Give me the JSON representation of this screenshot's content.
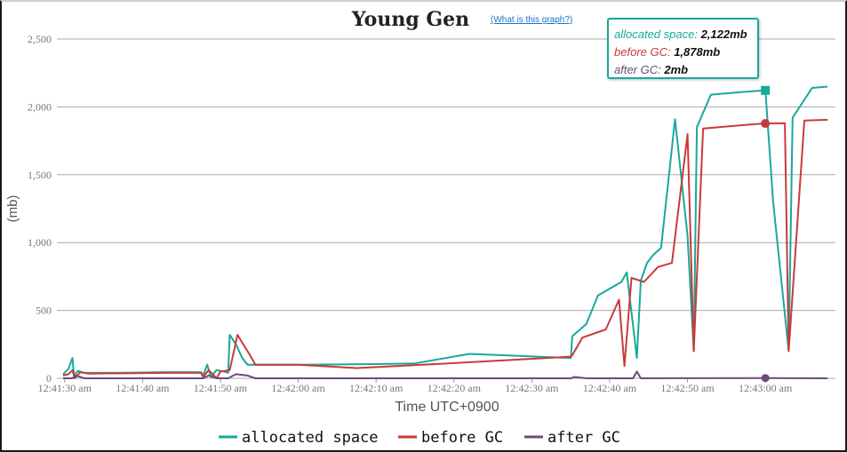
{
  "chart_data": {
    "type": "line",
    "title": "Young Gen",
    "help_link": "(What is this graph?)",
    "xlabel": "Time UTC+0900",
    "ylabel": "(mb)",
    "ylim": [
      0,
      2500
    ],
    "yticks": [
      "0",
      "500",
      "1,000",
      "1,500",
      "2,000",
      "2,500"
    ],
    "ytick_values": [
      0,
      500,
      1000,
      1500,
      2000,
      2500
    ],
    "xlim": [
      "12:41:29",
      "12:43:09"
    ],
    "xticks": [
      "12:41:30 am",
      "12:41:40 am",
      "12:41:50 am",
      "12:42:00 am",
      "12:42:10 am",
      "12:42:20 am",
      "12:42:30 am",
      "12:42:40 am",
      "12:42:50 am",
      "12:43:00 am"
    ],
    "xtick_values": [
      "12:41:30",
      "12:41:40",
      "12:41:50",
      "12:42:00",
      "12:42:10",
      "12:42:20",
      "12:42:30",
      "12:42:40",
      "12:42:50",
      "12:43:00"
    ],
    "grid": true,
    "legend_position": "bottom",
    "series": [
      {
        "name": "allocated space",
        "color": "#17a99a",
        "points": [
          [
            "12:41:29.8",
            30
          ],
          [
            "12:41:30.5",
            70
          ],
          [
            "12:41:31.0",
            150
          ],
          [
            "12:41:31.2",
            20
          ],
          [
            "12:41:31.7",
            55
          ],
          [
            "12:41:32.5",
            40
          ],
          [
            "12:41:37.0",
            40
          ],
          [
            "12:41:43.0",
            45
          ],
          [
            "12:41:47.5",
            45
          ],
          [
            "12:41:47.8",
            20
          ],
          [
            "12:41:48.3",
            100
          ],
          [
            "12:41:48.8",
            10
          ],
          [
            "12:41:49.5",
            60
          ],
          [
            "12:41:50.5",
            50
          ],
          [
            "12:41:51.0",
            40
          ],
          [
            "12:41:51.2",
            320
          ],
          [
            "12:41:52.0",
            250
          ],
          [
            "12:41:52.8",
            150
          ],
          [
            "12:41:53.5",
            100
          ],
          [
            "12:41:56.0",
            100
          ],
          [
            "12:42:00.0",
            100
          ],
          [
            "12:42:10.0",
            105
          ],
          [
            "12:42:15.0",
            110
          ],
          [
            "12:42:22.0",
            180
          ],
          [
            "12:42:35.0",
            150
          ],
          [
            "12:42:35.2",
            310
          ],
          [
            "12:42:37.0",
            400
          ],
          [
            "12:42:38.5",
            610
          ],
          [
            "12:42:41.5",
            710
          ],
          [
            "12:42:42.2",
            780
          ],
          [
            "12:42:43.5",
            150
          ],
          [
            "12:42:44.0",
            720
          ],
          [
            "12:42:44.8",
            850
          ],
          [
            "12:42:45.6",
            910
          ],
          [
            "12:42:46.6",
            960
          ],
          [
            "12:42:48.4",
            1910
          ],
          [
            "12:42:50.0",
            1050
          ],
          [
            "12:42:50.8",
            200
          ],
          [
            "12:42:51.2",
            1850
          ],
          [
            "12:42:53.0",
            2090
          ],
          [
            "12:42:57.0",
            2110
          ],
          [
            "12:43:00.0",
            2122
          ],
          [
            "12:43:01.0",
            1300
          ],
          [
            "12:43:03.0",
            200
          ],
          [
            "12:43:03.5",
            1920
          ],
          [
            "12:43:06.0",
            2140
          ],
          [
            "12:43:08.0",
            2150
          ]
        ]
      },
      {
        "name": "before GC",
        "color": "#c83a3a",
        "points": [
          [
            "12:41:29.8",
            20
          ],
          [
            "12:41:30.5",
            30
          ],
          [
            "12:41:31.0",
            60
          ],
          [
            "12:41:31.3",
            0
          ],
          [
            "12:41:32.0",
            45
          ],
          [
            "12:41:33.0",
            35
          ],
          [
            "12:41:43.0",
            40
          ],
          [
            "12:41:47.5",
            40
          ],
          [
            "12:41:47.8",
            10
          ],
          [
            "12:41:48.5",
            60
          ],
          [
            "12:41:49.5",
            0
          ],
          [
            "12:41:50.0",
            50
          ],
          [
            "12:41:51.2",
            60
          ],
          [
            "12:41:52.2",
            320
          ],
          [
            "12:41:53.7",
            180
          ],
          [
            "12:41:54.5",
            100
          ],
          [
            "12:42:00.0",
            100
          ],
          [
            "12:42:07.5",
            75
          ],
          [
            "12:42:21.0",
            115
          ],
          [
            "12:42:35.0",
            160
          ],
          [
            "12:42:35.2",
            170
          ],
          [
            "12:42:36.5",
            300
          ],
          [
            "12:42:39.5",
            360
          ],
          [
            "12:42:41.2",
            580
          ],
          [
            "12:42:41.9",
            90
          ],
          [
            "12:42:42.8",
            740
          ],
          [
            "12:42:44.4",
            710
          ],
          [
            "12:42:46.2",
            820
          ],
          [
            "12:42:48.0",
            850
          ],
          [
            "12:42:50.0",
            1800
          ],
          [
            "12:42:50.8",
            200
          ],
          [
            "12:42:52.0",
            1840
          ],
          [
            "12:42:58.0",
            1870
          ],
          [
            "12:43:00.0",
            1878
          ],
          [
            "12:43:02.5",
            1880
          ],
          [
            "12:43:03.0",
            200
          ],
          [
            "12:43:05.0",
            1900
          ],
          [
            "12:43:08.0",
            1905
          ]
        ]
      },
      {
        "name": "after GC",
        "color": "#6b4c7a",
        "points": [
          [
            "12:41:29.8",
            0
          ],
          [
            "12:41:31.0",
            0
          ],
          [
            "12:41:31.5",
            20
          ],
          [
            "12:41:32.5",
            0
          ],
          [
            "12:41:47.8",
            0
          ],
          [
            "12:41:48.5",
            20
          ],
          [
            "12:41:49.5",
            0
          ],
          [
            "12:41:51.0",
            0
          ],
          [
            "12:41:52.0",
            30
          ],
          [
            "12:41:53.5",
            20
          ],
          [
            "12:41:54.5",
            0
          ],
          [
            "12:42:35.0",
            0
          ],
          [
            "12:42:35.5",
            10
          ],
          [
            "12:42:37.0",
            0
          ],
          [
            "12:42:43.0",
            0
          ],
          [
            "12:42:43.5",
            50
          ],
          [
            "12:42:44.0",
            0
          ],
          [
            "12:43:00.0",
            2
          ],
          [
            "12:43:08.0",
            0
          ]
        ]
      }
    ]
  },
  "tooltip": {
    "rows": [
      {
        "label": "allocated space:",
        "value": "2,122mb",
        "color": "#17a99a"
      },
      {
        "label": "before GC:",
        "value": "1,878mb",
        "color": "#c83a3a"
      },
      {
        "label": "after GC:",
        "value": "2mb",
        "color": "#6b4c7a"
      }
    ],
    "highlight_time": "12:43:00.0"
  }
}
